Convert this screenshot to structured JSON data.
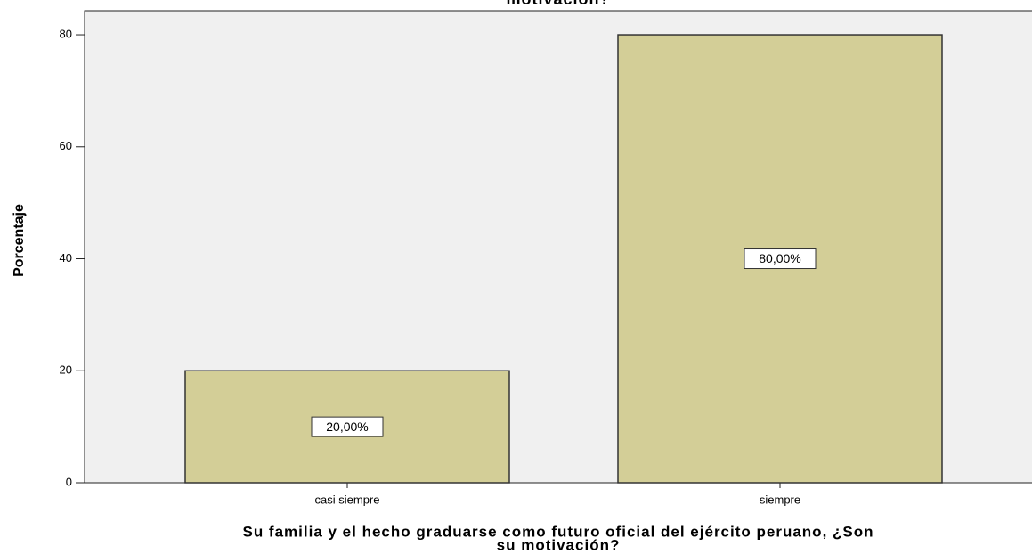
{
  "chart_data": {
    "type": "bar",
    "title": "motivación?",
    "categories": [
      "casi siempre",
      "siempre"
    ],
    "values": [
      20,
      80
    ],
    "value_labels": [
      "20,00%",
      "80,00%"
    ],
    "color": "#d3ce97",
    "ylabel": "Porcentaje",
    "xlabel": [
      "Su familia y el hecho graduarse como futuro oficial del ejército peruano, ¿Son",
      "su motivación?"
    ],
    "ylim": [
      0,
      84.3
    ],
    "yticks": [
      0,
      20,
      40,
      60,
      80
    ]
  }
}
